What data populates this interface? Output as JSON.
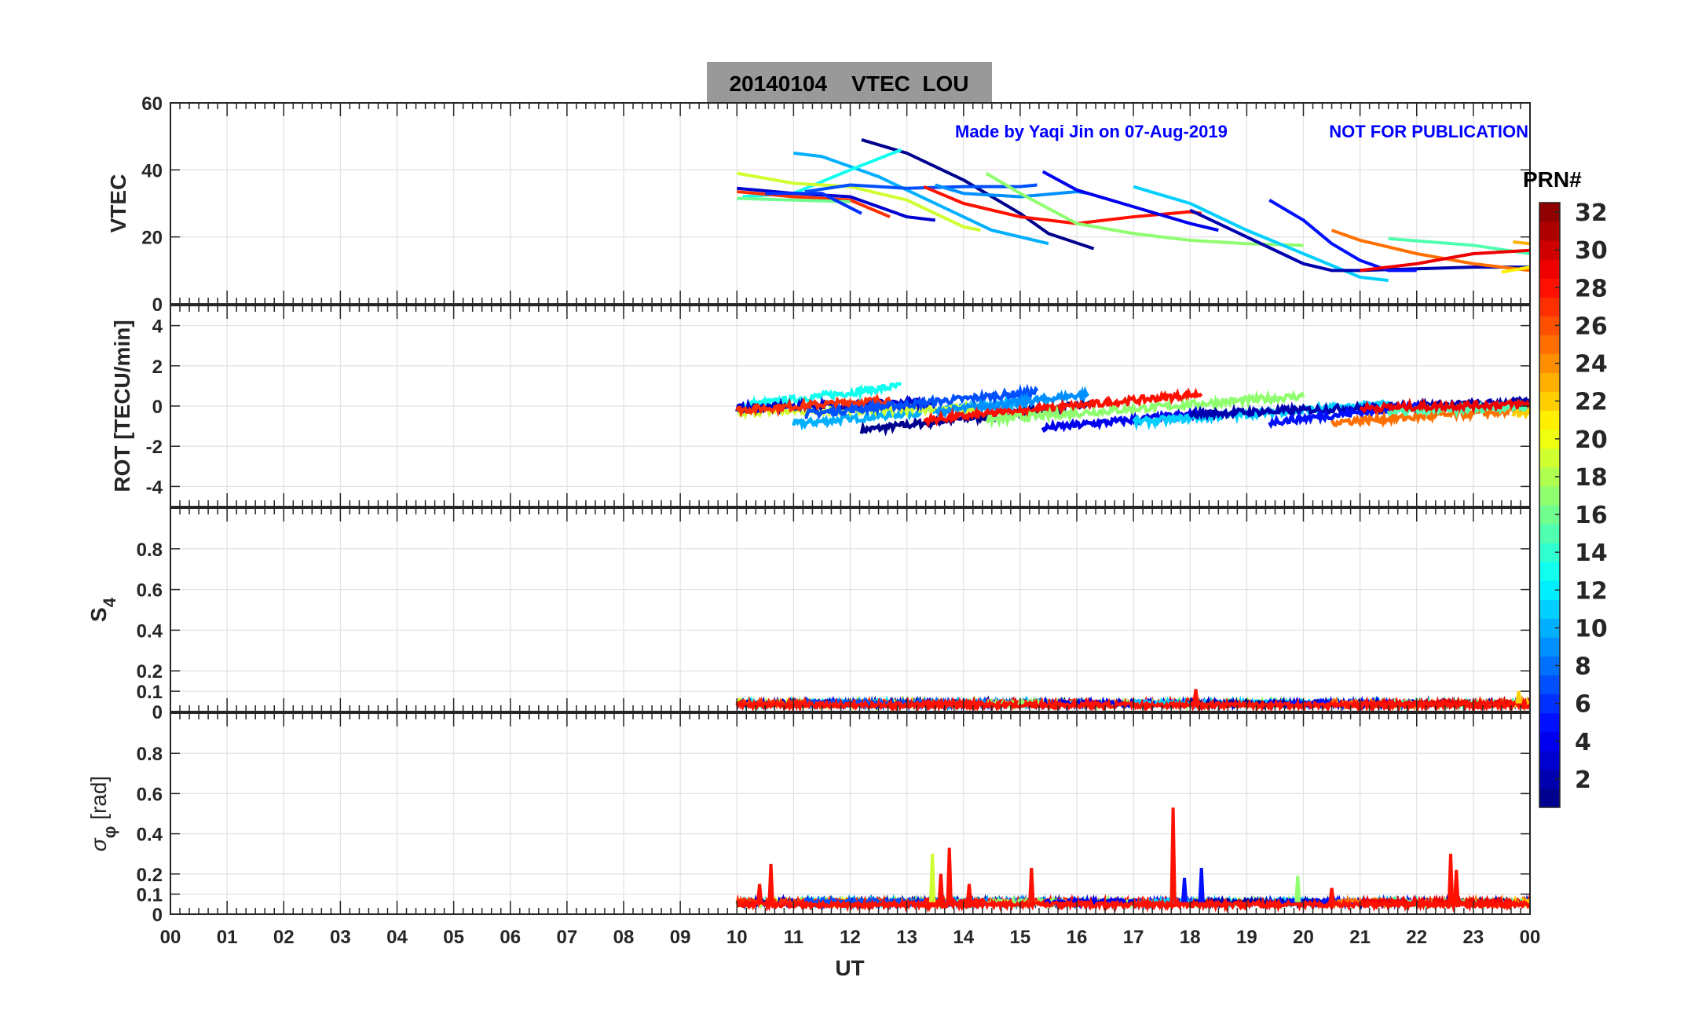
{
  "chart_data": {
    "type": "line",
    "title": "20140104    VTEC  LOU",
    "credit": "Made by Yaqi Jin on 07-Aug-2019",
    "notice": "NOT FOR PUBLICATION",
    "xlabel": "UT",
    "xlim": [
      0,
      24
    ],
    "xticks": [
      "00",
      "01",
      "02",
      "03",
      "04",
      "05",
      "06",
      "07",
      "08",
      "09",
      "10",
      "11",
      "12",
      "13",
      "14",
      "15",
      "16",
      "17",
      "18",
      "19",
      "20",
      "21",
      "22",
      "23",
      "00"
    ],
    "colorbar": {
      "label": "PRN#",
      "range": [
        1,
        32
      ],
      "ticks": [
        "2",
        "4",
        "6",
        "8",
        "10",
        "12",
        "14",
        "16",
        "18",
        "20",
        "22",
        "24",
        "26",
        "28",
        "30",
        "32"
      ],
      "colormap": "jet"
    },
    "panels": [
      {
        "id": "vtec",
        "ylabel": "VTEC",
        "ylim": [
          0,
          60
        ],
        "yticks": [
          0,
          20,
          40,
          60
        ],
        "yticklabels": [
          "0",
          "20",
          "40",
          "60"
        ]
      },
      {
        "id": "rot",
        "ylabel": "ROT [TECU/min]",
        "ylim": [
          -5,
          5
        ],
        "yticks": [
          -4,
          -2,
          0,
          2,
          4
        ],
        "yticklabels": [
          "-4",
          "-2",
          "0",
          "2",
          "4"
        ]
      },
      {
        "id": "s4",
        "ylabel": "S",
        "ylabel_sub": "4",
        "ylim": [
          0,
          1
        ],
        "yticks": [
          0,
          0.1,
          0.2,
          0.4,
          0.6,
          0.8
        ],
        "yticklabels": [
          "0",
          "0.1",
          "0.2",
          "0.4",
          "0.6",
          "0.8"
        ]
      },
      {
        "id": "sigma",
        "ylabel": "σ",
        "ylabel_sub": "φ",
        "ylabel_unit": " [rad]",
        "ylim": [
          0,
          1
        ],
        "yticks": [
          0,
          0.1,
          0.2,
          0.4,
          0.6,
          0.8
        ],
        "yticklabels": [
          "0",
          "0.1",
          "0.2",
          "0.4",
          "0.6",
          "0.8"
        ]
      }
    ],
    "vtec_series": [
      {
        "prn": 1,
        "points": [
          [
            12.2,
            49
          ],
          [
            13,
            45
          ],
          [
            14,
            37
          ],
          [
            15,
            27
          ],
          [
            15.5,
            21
          ],
          [
            16.3,
            16.5
          ]
        ]
      },
      {
        "prn": 10,
        "points": [
          [
            11,
            45
          ],
          [
            11.5,
            44
          ],
          [
            12.5,
            38
          ],
          [
            13.5,
            30
          ],
          [
            14.5,
            22
          ],
          [
            15.5,
            18
          ]
        ]
      },
      {
        "prn": 13,
        "points": [
          [
            10.1,
            32
          ],
          [
            11,
            33
          ],
          [
            12,
            40
          ],
          [
            12.9,
            46
          ]
        ]
      },
      {
        "prn": 19,
        "points": [
          [
            10,
            39
          ],
          [
            11,
            36
          ],
          [
            12,
            35
          ],
          [
            13,
            31
          ],
          [
            14,
            23
          ],
          [
            14.3,
            22
          ]
        ]
      },
      {
        "prn": 3,
        "points": [
          [
            10,
            34.5
          ],
          [
            11,
            33
          ],
          [
            12,
            32
          ],
          [
            13,
            26
          ],
          [
            13.5,
            25
          ]
        ]
      },
      {
        "prn": 27,
        "points": [
          [
            10,
            33.5
          ],
          [
            11,
            32
          ],
          [
            12,
            31
          ],
          [
            12.7,
            26
          ]
        ]
      },
      {
        "prn": 16,
        "points": [
          [
            10,
            31.5
          ],
          [
            11,
            31
          ],
          [
            12,
            30.5
          ]
        ]
      },
      {
        "prn": 6,
        "points": [
          [
            10.5,
            33
          ],
          [
            11.5,
            33
          ],
          [
            12.2,
            27
          ]
        ]
      },
      {
        "prn": 7,
        "points": [
          [
            11.2,
            33.5
          ],
          [
            12,
            35.5
          ],
          [
            13,
            34.5
          ],
          [
            14,
            35
          ],
          [
            15,
            35
          ],
          [
            15.3,
            35.5
          ]
        ]
      },
      {
        "prn": 9,
        "points": [
          [
            13.5,
            35.5
          ],
          [
            14,
            33
          ],
          [
            15,
            32
          ],
          [
            16,
            33.5
          ],
          [
            16.2,
            33
          ]
        ]
      },
      {
        "prn": 28,
        "points": [
          [
            13.3,
            35
          ],
          [
            14,
            30
          ],
          [
            15,
            26
          ],
          [
            16,
            24
          ],
          [
            17,
            26
          ],
          [
            18,
            27.5
          ],
          [
            18.2,
            27
          ]
        ]
      },
      {
        "prn": 17,
        "points": [
          [
            14.4,
            39
          ],
          [
            15,
            33
          ],
          [
            16,
            24
          ],
          [
            17,
            21
          ],
          [
            18,
            19
          ],
          [
            19,
            18
          ],
          [
            20,
            17.5
          ]
        ]
      },
      {
        "prn": 4,
        "points": [
          [
            15.4,
            39.5
          ],
          [
            16,
            34
          ],
          [
            17,
            29
          ],
          [
            18,
            24
          ],
          [
            18.5,
            22
          ]
        ]
      },
      {
        "prn": 11,
        "points": [
          [
            17,
            35
          ],
          [
            18,
            30
          ],
          [
            19,
            22
          ],
          [
            20,
            15
          ],
          [
            21,
            8
          ],
          [
            21.5,
            7
          ]
        ]
      },
      {
        "prn": 2,
        "points": [
          [
            18,
            28
          ],
          [
            19,
            20
          ],
          [
            20,
            12
          ],
          [
            20.5,
            10
          ],
          [
            21,
            10
          ],
          [
            22,
            10.5
          ],
          [
            23,
            11
          ],
          [
            24,
            11
          ]
        ]
      },
      {
        "prn": 5,
        "points": [
          [
            19.4,
            31
          ],
          [
            20,
            25
          ],
          [
            20.5,
            18
          ],
          [
            21,
            13
          ],
          [
            21.5,
            10
          ],
          [
            22,
            10
          ]
        ]
      },
      {
        "prn": 25,
        "points": [
          [
            20.5,
            22
          ],
          [
            21,
            19
          ],
          [
            21.5,
            17
          ],
          [
            22,
            15
          ],
          [
            23,
            12
          ],
          [
            24,
            10
          ]
        ]
      },
      {
        "prn": 15,
        "points": [
          [
            21.5,
            19.5
          ],
          [
            23,
            17.5
          ],
          [
            24,
            15
          ]
        ]
      },
      {
        "prn": 29,
        "points": [
          [
            21,
            10
          ],
          [
            22,
            12
          ],
          [
            23,
            15
          ],
          [
            24,
            16
          ]
        ]
      },
      {
        "prn": 21,
        "points": [
          [
            23.5,
            9.5
          ],
          [
            24,
            11
          ]
        ]
      },
      {
        "prn": 23,
        "points": [
          [
            23.7,
            18.5
          ],
          [
            24,
            18
          ]
        ]
      }
    ],
    "rot_series": [
      {
        "prn": 1,
        "t": [
          12.2,
          16.3
        ],
        "v": [
          -1.2,
          0.1
        ]
      },
      {
        "prn": 10,
        "t": [
          11,
          15.5
        ],
        "v": [
          -0.9,
          0.3
        ]
      },
      {
        "prn": 13,
        "t": [
          10.1,
          12.9
        ],
        "v": [
          0.0,
          1.0
        ]
      },
      {
        "prn": 19,
        "t": [
          10,
          14.3
        ],
        "v": [
          -0.3,
          -0.1
        ]
      },
      {
        "prn": 3,
        "t": [
          10,
          13.5
        ],
        "v": [
          -0.1,
          0.2
        ]
      },
      {
        "prn": 27,
        "t": [
          10,
          12.7
        ],
        "v": [
          -0.2,
          0.3
        ]
      },
      {
        "prn": 7,
        "t": [
          11.2,
          15.3
        ],
        "v": [
          -0.4,
          0.7
        ]
      },
      {
        "prn": 9,
        "t": [
          13.5,
          16.2
        ],
        "v": [
          -0.3,
          0.6
        ]
      },
      {
        "prn": 28,
        "t": [
          13.3,
          18.2
        ],
        "v": [
          -0.7,
          0.6
        ]
      },
      {
        "prn": 17,
        "t": [
          14.4,
          20
        ],
        "v": [
          -0.7,
          0.5
        ]
      },
      {
        "prn": 4,
        "t": [
          15.4,
          18.5
        ],
        "v": [
          -1.1,
          -0.3
        ]
      },
      {
        "prn": 11,
        "t": [
          17,
          21.5
        ],
        "v": [
          -0.8,
          0.1
        ]
      },
      {
        "prn": 2,
        "t": [
          18,
          24
        ],
        "v": [
          -0.4,
          0.2
        ]
      },
      {
        "prn": 5,
        "t": [
          19.4,
          22
        ],
        "v": [
          -0.8,
          0.0
        ]
      },
      {
        "prn": 25,
        "t": [
          20.5,
          24
        ],
        "v": [
          -0.8,
          -0.2
        ]
      },
      {
        "prn": 15,
        "t": [
          21.5,
          24
        ],
        "v": [
          -0.3,
          0.0
        ]
      },
      {
        "prn": 29,
        "t": [
          21,
          24
        ],
        "v": [
          -0.1,
          0.1
        ]
      },
      {
        "prn": 22,
        "t": [
          23.7,
          24
        ],
        "v": [
          -0.4,
          -0.3
        ]
      }
    ],
    "s4_baseline": 0.04,
    "s4_spikes": [
      {
        "t": 18.1,
        "v": 0.11,
        "prn": 28
      },
      {
        "t": 23.8,
        "v": 0.1,
        "prn": 22
      }
    ],
    "sigma_baseline": 0.06,
    "sigma_spikes": [
      {
        "t": 10.4,
        "v": 0.15,
        "prn": 28
      },
      {
        "t": 10.6,
        "v": 0.25,
        "prn": 28
      },
      {
        "t": 13.45,
        "v": 0.3,
        "prn": 19
      },
      {
        "t": 13.6,
        "v": 0.2,
        "prn": 28
      },
      {
        "t": 13.75,
        "v": 0.33,
        "prn": 28
      },
      {
        "t": 14.1,
        "v": 0.15,
        "prn": 28
      },
      {
        "t": 15.2,
        "v": 0.23,
        "prn": 28
      },
      {
        "t": 17.7,
        "v": 0.53,
        "prn": 28
      },
      {
        "t": 18.2,
        "v": 0.23,
        "prn": 5
      },
      {
        "t": 19.9,
        "v": 0.19,
        "prn": 17
      },
      {
        "t": 20.5,
        "v": 0.13,
        "prn": 28
      },
      {
        "t": 22.6,
        "v": 0.3,
        "prn": 28
      },
      {
        "t": 22.7,
        "v": 0.22,
        "prn": 28
      },
      {
        "t": 17.9,
        "v": 0.18,
        "prn": 5
      }
    ],
    "colors": {
      "title_box": "#999999",
      "credit": "#0000ff",
      "axis": "#262626",
      "grid": "#e3e3e3"
    }
  }
}
